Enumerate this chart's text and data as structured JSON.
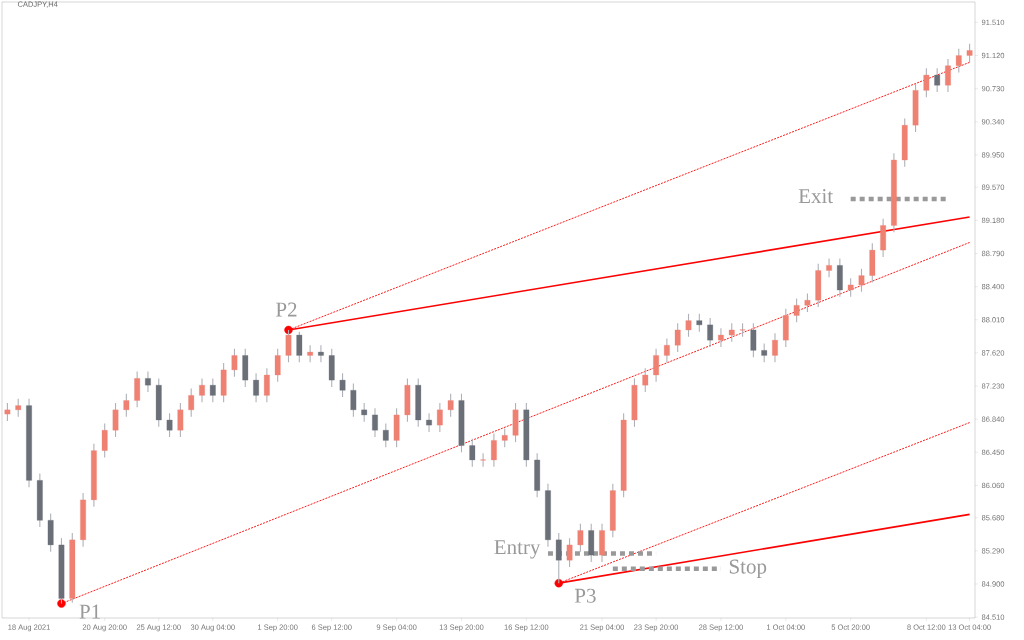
{
  "chart_data": {
    "type": "candlestick",
    "title": "CADJPY,H4",
    "categories": [
      null,
      null,
      "18 Aug 2021",
      null,
      null,
      null,
      null,
      null,
      null,
      "20 Aug 20:00",
      null,
      null,
      null,
      null,
      "25 Aug 12:00",
      null,
      null,
      null,
      null,
      "30 Aug 04:00",
      null,
      null,
      null,
      null,
      null,
      "1 Sep 20:00",
      null,
      null,
      null,
      null,
      "6 Sep 12:00",
      null,
      null,
      null,
      null,
      null,
      "9 Sep 04:00",
      null,
      null,
      null,
      null,
      null,
      "13 Sep 20:00",
      null,
      null,
      null,
      null,
      null,
      "16 Sep 12:00",
      null,
      null,
      null,
      null,
      null,
      null,
      "21 Sep 04:00",
      null,
      null,
      null,
      null,
      "23 Sep 20:00",
      null,
      null,
      null,
      null,
      null,
      "28 Sep 12:00",
      null,
      null,
      null,
      null,
      null,
      "1 Oct 04:00",
      null,
      null,
      null,
      null,
      null,
      "5 Oct 20:00",
      null,
      null,
      null,
      null,
      null,
      null,
      "8 Oct 12:00",
      null,
      null,
      null,
      "13 Oct 04:00"
    ],
    "ohlc": [
      [
        86.9,
        87.03,
        86.82,
        86.95
      ],
      [
        86.95,
        87.08,
        86.87,
        87.0
      ],
      [
        87.0,
        87.08,
        86.04,
        86.12
      ],
      [
        86.12,
        86.2,
        85.57,
        85.65
      ],
      [
        85.65,
        85.73,
        85.28,
        85.36
      ],
      [
        85.36,
        85.44,
        84.67,
        84.73
      ],
      [
        84.73,
        85.5,
        84.68,
        85.42
      ],
      [
        85.42,
        85.97,
        85.34,
        85.89
      ],
      [
        85.89,
        86.55,
        85.81,
        86.47
      ],
      [
        86.47,
        86.79,
        86.39,
        86.71
      ],
      [
        86.71,
        87.03,
        86.63,
        86.95
      ],
      [
        86.95,
        87.14,
        86.87,
        87.06
      ],
      [
        87.06,
        87.4,
        86.98,
        87.32
      ],
      [
        87.32,
        87.4,
        87.16,
        87.24
      ],
      [
        87.24,
        87.32,
        86.75,
        86.83
      ],
      [
        86.83,
        86.91,
        86.63,
        86.71
      ],
      [
        86.71,
        87.03,
        86.63,
        86.95
      ],
      [
        86.95,
        87.2,
        86.87,
        87.12
      ],
      [
        87.12,
        87.32,
        87.04,
        87.24
      ],
      [
        87.24,
        87.32,
        87.04,
        87.12
      ],
      [
        87.12,
        87.5,
        87.04,
        87.42
      ],
      [
        87.42,
        87.67,
        87.34,
        87.59
      ],
      [
        87.59,
        87.67,
        87.22,
        87.3
      ],
      [
        87.3,
        87.38,
        87.04,
        87.12
      ],
      [
        87.12,
        87.44,
        87.04,
        87.36
      ],
      [
        87.36,
        87.67,
        87.28,
        87.59
      ],
      [
        87.59,
        87.89,
        87.51,
        87.83
      ],
      [
        87.83,
        87.87,
        87.51,
        87.59
      ],
      [
        87.59,
        87.71,
        87.51,
        87.63
      ],
      [
        87.63,
        87.71,
        87.51,
        87.59
      ],
      [
        87.59,
        87.67,
        87.22,
        87.3
      ],
      [
        87.3,
        87.38,
        87.1,
        87.18
      ],
      [
        87.18,
        87.26,
        86.87,
        86.95
      ],
      [
        86.95,
        87.03,
        86.81,
        86.89
      ],
      [
        86.89,
        86.97,
        86.63,
        86.71
      ],
      [
        86.71,
        86.79,
        86.51,
        86.59
      ],
      [
        86.59,
        86.97,
        86.51,
        86.89
      ],
      [
        86.89,
        87.32,
        86.81,
        87.24
      ],
      [
        87.24,
        87.32,
        86.75,
        86.83
      ],
      [
        86.83,
        86.91,
        86.69,
        86.77
      ],
      [
        86.77,
        87.03,
        86.69,
        86.95
      ],
      [
        86.95,
        87.14,
        86.87,
        87.06
      ],
      [
        87.06,
        87.14,
        86.45,
        86.53
      ],
      [
        86.53,
        86.61,
        86.28,
        86.36
      ],
      [
        86.36,
        86.44,
        86.28,
        86.36
      ],
      [
        86.36,
        86.67,
        86.28,
        86.59
      ],
      [
        86.59,
        86.73,
        86.51,
        86.65
      ],
      [
        86.65,
        87.03,
        86.57,
        86.95
      ],
      [
        86.95,
        87.03,
        86.28,
        86.36
      ],
      [
        86.36,
        86.44,
        85.92,
        86.0
      ],
      [
        86.0,
        86.08,
        85.34,
        85.42
      ],
      [
        85.42,
        85.5,
        84.91,
        85.18
      ],
      [
        85.18,
        85.44,
        85.1,
        85.36
      ],
      [
        85.36,
        85.61,
        85.28,
        85.53
      ],
      [
        85.53,
        85.61,
        85.16,
        85.24
      ],
      [
        85.24,
        85.61,
        85.16,
        85.53
      ],
      [
        85.53,
        86.08,
        85.45,
        86.0
      ],
      [
        86.0,
        86.91,
        85.92,
        86.83
      ],
      [
        86.83,
        87.32,
        86.75,
        87.24
      ],
      [
        87.24,
        87.44,
        87.16,
        87.36
      ],
      [
        87.36,
        87.67,
        87.28,
        87.59
      ],
      [
        87.59,
        87.79,
        87.51,
        87.71
      ],
      [
        87.71,
        87.97,
        87.63,
        87.89
      ],
      [
        87.89,
        88.08,
        87.81,
        88.0
      ],
      [
        88.0,
        88.08,
        87.87,
        87.95
      ],
      [
        87.95,
        88.03,
        87.69,
        87.77
      ],
      [
        87.77,
        87.91,
        87.69,
        87.83
      ],
      [
        87.83,
        87.97,
        87.75,
        87.89
      ],
      [
        87.89,
        87.97,
        87.81,
        87.89
      ],
      [
        87.89,
        87.97,
        87.57,
        87.65
      ],
      [
        87.65,
        87.73,
        87.51,
        87.59
      ],
      [
        87.59,
        87.85,
        87.51,
        87.77
      ],
      [
        87.77,
        88.14,
        87.69,
        88.06
      ],
      [
        88.06,
        88.26,
        87.98,
        88.18
      ],
      [
        88.18,
        88.32,
        88.1,
        88.24
      ],
      [
        88.24,
        88.67,
        88.16,
        88.59
      ],
      [
        88.59,
        88.73,
        88.51,
        88.65
      ],
      [
        88.65,
        88.73,
        88.28,
        88.36
      ],
      [
        88.36,
        88.5,
        88.28,
        88.42
      ],
      [
        88.42,
        88.61,
        88.34,
        88.53
      ],
      [
        88.53,
        88.91,
        88.45,
        88.83
      ],
      [
        88.83,
        89.2,
        88.75,
        89.12
      ],
      [
        89.12,
        89.97,
        89.04,
        89.89
      ],
      [
        89.89,
        90.38,
        89.81,
        90.3
      ],
      [
        90.3,
        90.79,
        90.22,
        90.71
      ],
      [
        90.71,
        90.97,
        90.63,
        90.89
      ],
      [
        90.89,
        90.97,
        90.69,
        90.77
      ],
      [
        90.77,
        91.08,
        90.69,
        91.0
      ],
      [
        91.0,
        91.2,
        90.92,
        91.12
      ],
      [
        91.12,
        91.26,
        91.04,
        91.18
      ]
    ],
    "ylim": [
      84.5,
      91.75
    ],
    "yticks": [
      {
        "value": 84.51,
        "label": "84.510"
      },
      {
        "value": 84.9,
        "label": "84.900"
      },
      {
        "value": 85.29,
        "label": "85.290"
      },
      {
        "value": 85.68,
        "label": "85.680"
      },
      {
        "value": 86.06,
        "label": "86.060"
      },
      {
        "value": 86.45,
        "label": "86.450"
      },
      {
        "value": 86.84,
        "label": "86.840"
      },
      {
        "value": 87.23,
        "label": "87.230"
      },
      {
        "value": 87.62,
        "label": "87.620"
      },
      {
        "value": 88.01,
        "label": "88.010"
      },
      {
        "value": 88.4,
        "label": "88.400"
      },
      {
        "value": 88.79,
        "label": "88.790"
      },
      {
        "value": 89.18,
        "label": "89.180"
      },
      {
        "value": 89.57,
        "label": "89.570"
      },
      {
        "value": 89.95,
        "label": "89.950"
      },
      {
        "value": 90.34,
        "label": "90.340"
      },
      {
        "value": 90.73,
        "label": "90.730"
      },
      {
        "value": 91.12,
        "label": "91.120"
      },
      {
        "value": 91.51,
        "label": "91.510"
      }
    ],
    "series": [
      {
        "type": "line",
        "color": "#ff0000",
        "line_style": "solid",
        "values": [
          null,
          null,
          null,
          null,
          null,
          null,
          null,
          null,
          null,
          null,
          null,
          null,
          null,
          null,
          null,
          null,
          null,
          null,
          null,
          null,
          null,
          null,
          null,
          null,
          null,
          null,
          87.89,
          null,
          null,
          null,
          null,
          null,
          null,
          null,
          null,
          null,
          null,
          null,
          null,
          null,
          null,
          null,
          null,
          null,
          null,
          null,
          null,
          null,
          null,
          null,
          null,
          null,
          null,
          null,
          null,
          null,
          null,
          null,
          null,
          null,
          null,
          null,
          null,
          null,
          null,
          null,
          null,
          null,
          null,
          null,
          null,
          null,
          null,
          null,
          null,
          null,
          null,
          null,
          null,
          null,
          null,
          null,
          null,
          null,
          null,
          null,
          null,
          null,
          null,
          89.22
        ]
      },
      {
        "type": "line",
        "color": "#ff0000",
        "line_style": "solid",
        "values": [
          null,
          null,
          null,
          null,
          null,
          null,
          null,
          null,
          null,
          null,
          null,
          null,
          null,
          null,
          null,
          null,
          null,
          null,
          null,
          null,
          null,
          null,
          null,
          null,
          null,
          null,
          null,
          null,
          null,
          null,
          null,
          null,
          null,
          null,
          null,
          null,
          null,
          null,
          null,
          null,
          null,
          null,
          null,
          null,
          null,
          null,
          null,
          null,
          null,
          null,
          null,
          84.91,
          null,
          null,
          null,
          null,
          null,
          null,
          null,
          null,
          null,
          null,
          null,
          null,
          null,
          null,
          null,
          null,
          null,
          null,
          null,
          null,
          null,
          null,
          null,
          null,
          null,
          null,
          null,
          null,
          null,
          null,
          null,
          null,
          null,
          null,
          null,
          null,
          null,
          85.72
        ]
      },
      {
        "type": "line",
        "color": "#ff0000",
        "line_style": "dashed",
        "values": [
          null,
          null,
          null,
          null,
          null,
          84.67,
          null,
          null,
          null,
          null,
          null,
          null,
          null,
          null,
          null,
          null,
          null,
          null,
          null,
          null,
          null,
          null,
          null,
          null,
          null,
          null,
          null,
          null,
          null,
          null,
          null,
          null,
          null,
          null,
          null,
          null,
          null,
          null,
          null,
          null,
          null,
          null,
          null,
          null,
          null,
          null,
          null,
          null,
          null,
          null,
          null,
          null,
          null,
          null,
          null,
          null,
          null,
          null,
          null,
          null,
          null,
          null,
          null,
          null,
          null,
          null,
          null,
          null,
          null,
          null,
          null,
          null,
          null,
          null,
          null,
          null,
          null,
          null,
          null,
          null,
          null,
          null,
          null,
          null,
          null,
          null,
          null,
          null,
          null,
          88.92
        ]
      },
      {
        "type": "line",
        "color": "#ff0000",
        "line_style": "dashed",
        "values": [
          null,
          null,
          null,
          null,
          null,
          null,
          null,
          null,
          null,
          null,
          null,
          null,
          null,
          null,
          null,
          null,
          null,
          null,
          null,
          null,
          null,
          null,
          null,
          null,
          null,
          null,
          87.89,
          null,
          null,
          null,
          null,
          null,
          null,
          null,
          null,
          null,
          null,
          null,
          null,
          null,
          null,
          null,
          null,
          null,
          null,
          null,
          null,
          null,
          null,
          null,
          null,
          null,
          null,
          null,
          null,
          null,
          null,
          null,
          null,
          null,
          null,
          null,
          null,
          null,
          null,
          null,
          null,
          null,
          null,
          null,
          null,
          null,
          null,
          null,
          null,
          null,
          null,
          null,
          null,
          null,
          null,
          null,
          null,
          null,
          null,
          null,
          null,
          null,
          null,
          91.04
        ]
      },
      {
        "type": "line",
        "color": "#ff0000",
        "line_style": "dashed",
        "values": [
          null,
          null,
          null,
          null,
          null,
          null,
          null,
          null,
          null,
          null,
          null,
          null,
          null,
          null,
          null,
          null,
          null,
          null,
          null,
          null,
          null,
          null,
          null,
          null,
          null,
          null,
          null,
          null,
          null,
          null,
          null,
          null,
          null,
          null,
          null,
          null,
          null,
          null,
          null,
          null,
          null,
          null,
          null,
          null,
          null,
          null,
          null,
          null,
          null,
          null,
          null,
          84.91,
          null,
          null,
          null,
          null,
          null,
          null,
          null,
          null,
          null,
          null,
          null,
          null,
          null,
          null,
          null,
          null,
          null,
          null,
          null,
          null,
          null,
          null,
          null,
          null,
          null,
          null,
          null,
          null,
          null,
          null,
          null,
          null,
          null,
          null,
          null,
          null,
          null,
          86.8
        ]
      },
      {
        "type": "line",
        "color": "#999999",
        "line_style": "dotted",
        "values": [
          null,
          null,
          null,
          null,
          null,
          null,
          null,
          null,
          null,
          null,
          null,
          null,
          null,
          null,
          null,
          null,
          null,
          null,
          null,
          null,
          null,
          null,
          null,
          null,
          null,
          null,
          null,
          null,
          null,
          null,
          null,
          null,
          null,
          null,
          null,
          null,
          null,
          null,
          null,
          null,
          null,
          null,
          null,
          null,
          null,
          null,
          null,
          null,
          null,
          null,
          85.26,
          null,
          null,
          null,
          null,
          null,
          null,
          null,
          null,
          null,
          85.26,
          null,
          null,
          null,
          null,
          null,
          null,
          null,
          null,
          null,
          null,
          null,
          null,
          null,
          null,
          null,
          null,
          null,
          null,
          null,
          null,
          null,
          null,
          null,
          null,
          null,
          null,
          null,
          null,
          null
        ]
      },
      {
        "type": "line",
        "color": "#999999",
        "line_style": "dotted",
        "values": [
          null,
          null,
          null,
          null,
          null,
          null,
          null,
          null,
          null,
          null,
          null,
          null,
          null,
          null,
          null,
          null,
          null,
          null,
          null,
          null,
          null,
          null,
          null,
          null,
          null,
          null,
          null,
          null,
          null,
          null,
          null,
          null,
          null,
          null,
          null,
          null,
          null,
          null,
          null,
          null,
          null,
          null,
          null,
          null,
          null,
          null,
          null,
          null,
          null,
          null,
          null,
          null,
          null,
          null,
          null,
          null,
          85.08,
          null,
          null,
          null,
          null,
          null,
          null,
          null,
          null,
          null,
          85.08,
          null,
          null,
          null,
          null,
          null,
          null,
          null,
          null,
          null,
          null,
          null,
          null,
          null,
          null,
          null,
          null,
          null,
          null,
          null,
          null,
          null,
          null,
          null
        ]
      },
      {
        "type": "line",
        "color": "#999999",
        "line_style": "dotted",
        "values": [
          null,
          null,
          null,
          null,
          null,
          null,
          null,
          null,
          null,
          null,
          null,
          null,
          null,
          null,
          null,
          null,
          null,
          null,
          null,
          null,
          null,
          null,
          null,
          null,
          null,
          null,
          null,
          null,
          null,
          null,
          null,
          null,
          null,
          null,
          null,
          null,
          null,
          null,
          null,
          null,
          null,
          null,
          null,
          null,
          null,
          null,
          null,
          null,
          null,
          null,
          null,
          null,
          null,
          null,
          null,
          null,
          null,
          null,
          null,
          null,
          null,
          null,
          null,
          null,
          null,
          null,
          null,
          null,
          null,
          null,
          null,
          null,
          null,
          null,
          null,
          null,
          null,
          null,
          89.43,
          null,
          null,
          null,
          null,
          null,
          null,
          null,
          null,
          89.43,
          null,
          null
        ]
      },
      {
        "type": "scatter",
        "color": "#ff0000",
        "marker": "circle",
        "values": [
          null,
          null,
          null,
          null,
          null,
          84.67,
          null,
          null,
          null,
          null,
          null,
          null,
          null,
          null,
          null,
          null,
          null,
          null,
          null,
          null,
          null,
          null,
          null,
          null,
          null,
          null,
          87.89,
          null,
          null,
          null,
          null,
          null,
          null,
          null,
          null,
          null,
          null,
          null,
          null,
          null,
          null,
          null,
          null,
          null,
          null,
          null,
          null,
          null,
          null,
          null,
          null,
          84.91,
          null,
          null,
          null,
          null,
          null,
          null,
          null,
          null,
          null,
          null,
          null,
          null,
          null,
          null,
          null,
          null,
          null,
          null,
          null,
          null,
          null,
          null,
          null,
          null,
          null,
          null,
          null,
          null,
          null,
          null,
          null,
          null,
          null,
          null,
          null,
          null,
          null,
          null
        ]
      }
    ],
    "annotations": [
      "P1",
      "P2",
      "P3",
      "Entry",
      "Stop",
      "Exit"
    ]
  }
}
